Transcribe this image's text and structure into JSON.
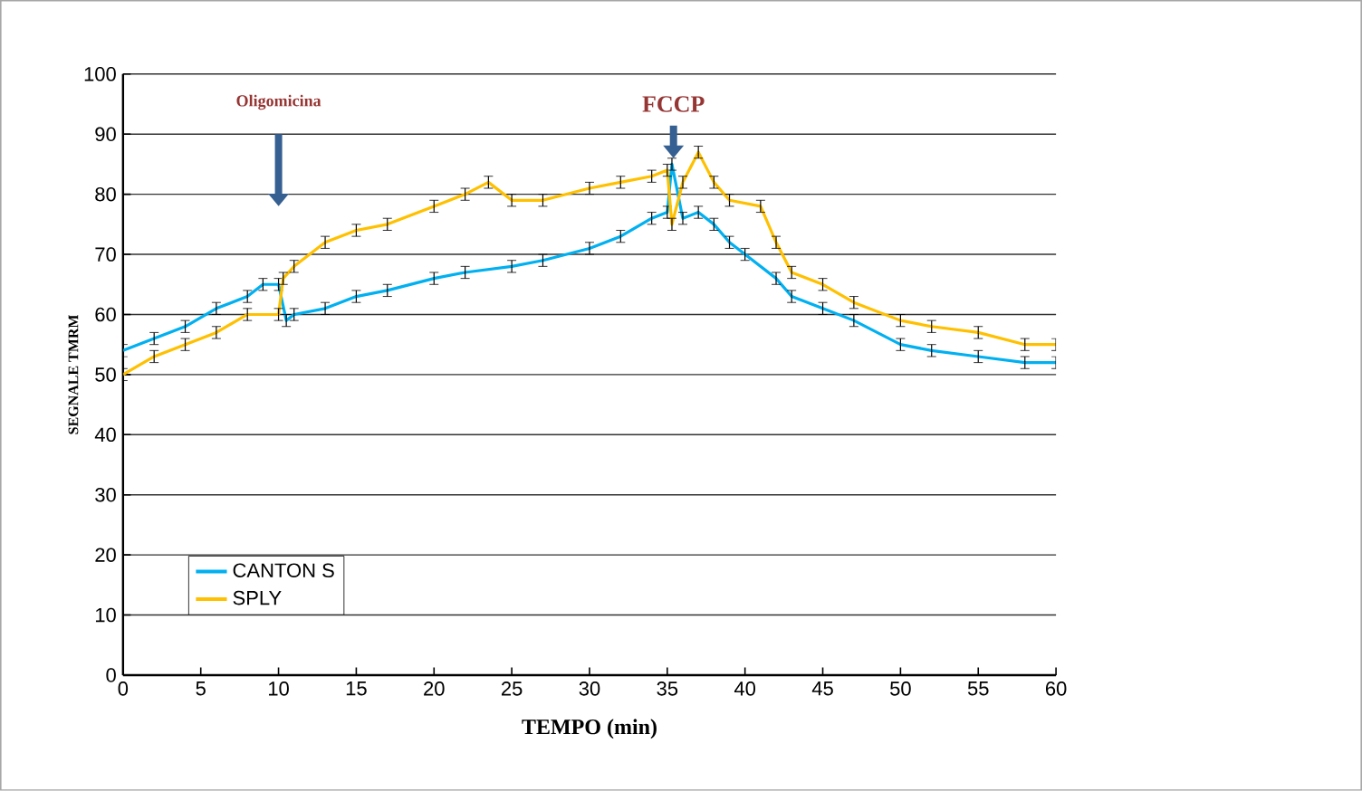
{
  "chart_data": {
    "type": "line",
    "xlabel": "TEMPO (min)",
    "ylabel": "SEGNALE TMRM",
    "annotations": [
      "Oligomicina",
      {
        "text": "FCCP",
        "x": 35.4,
        "y": 86
      }
    ],
    "series": [
      {
        "name": "CANTON S",
        "color": "#00b0f0",
        "x": [
          0,
          2,
          4,
          6,
          8,
          9,
          10,
          10.5,
          11,
          13,
          15,
          17,
          20,
          22,
          25,
          27,
          30,
          32,
          34,
          35,
          35.3,
          36,
          37,
          38,
          39,
          40,
          42,
          43,
          45,
          47,
          50,
          52,
          55,
          58,
          60
        ],
        "values": [
          54,
          56,
          58,
          61,
          63,
          65,
          65,
          59,
          60,
          61,
          63,
          64,
          66,
          67,
          68,
          69,
          71,
          73,
          76,
          77,
          85,
          76,
          77,
          75,
          72,
          70,
          66,
          63,
          61,
          59,
          55,
          54,
          53,
          52,
          52
        ],
        "errors": [
          1,
          1,
          1,
          1,
          1,
          1,
          1,
          1,
          1,
          1,
          1,
          1,
          1,
          1,
          1,
          1,
          1,
          1,
          1,
          1,
          1,
          1,
          1,
          1,
          1,
          1,
          1,
          1,
          1,
          1,
          1,
          1,
          1,
          1,
          1
        ]
      },
      {
        "name": "SPLY",
        "color": "#ffc000",
        "x": [
          0,
          2,
          4,
          6,
          8,
          10,
          10.3,
          11,
          13,
          15,
          17,
          20,
          22,
          23.5,
          25,
          27,
          30,
          32,
          34,
          35,
          35.3,
          36,
          37,
          38,
          39,
          41,
          42,
          43,
          45,
          47,
          50,
          52,
          55,
          58,
          60
        ],
        "values": [
          50,
          53,
          55,
          57,
          60,
          60,
          66,
          68,
          72,
          74,
          75,
          78,
          80,
          82,
          79,
          79,
          81,
          82,
          83,
          84,
          75,
          82,
          87,
          82,
          79,
          78,
          72,
          67,
          65,
          62,
          59,
          58,
          57,
          55,
          55
        ],
        "errors": [
          1,
          1,
          1,
          1,
          1,
          1,
          1,
          1,
          1,
          1,
          1,
          1,
          1,
          1,
          1,
          1,
          1,
          1,
          1,
          1,
          1,
          1,
          1,
          1,
          1,
          1,
          1,
          1,
          1,
          1,
          1,
          1,
          1,
          1,
          1
        ]
      }
    ],
    "xlim": [
      0,
      60
    ],
    "ylim": [
      0,
      100
    ],
    "xticks": [
      0,
      5,
      10,
      15,
      20,
      25,
      30,
      35,
      40,
      45,
      50,
      55,
      60
    ],
    "yticks": [
      0,
      10,
      20,
      30,
      40,
      50,
      60,
      70,
      80,
      90,
      100
    ],
    "grid": "y",
    "legend": "bottom left",
    "marker": "none",
    "line_style": "solid"
  }
}
